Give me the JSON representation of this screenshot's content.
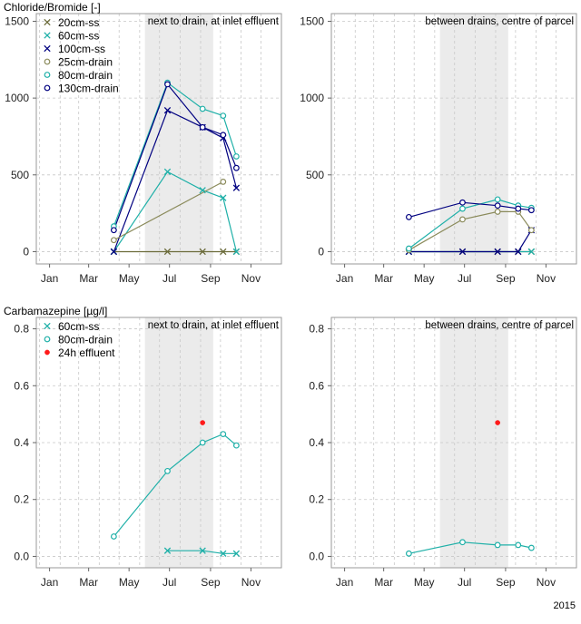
{
  "figure": {
    "year_label": "2015"
  },
  "chart_data": [
    {
      "id": "tl",
      "type": "line",
      "title": "Chloride/Bromide [-]",
      "annotation": "next to drain, at inlet effluent",
      "ylim": [
        -80,
        1550
      ],
      "yticks": [
        0,
        500,
        1000,
        1500
      ],
      "x_tick_labels": [
        "Jan",
        "Mar",
        "May",
        "Jul",
        "Sep",
        "Nov"
      ],
      "shaded_period": [
        "Jun",
        "Sep"
      ],
      "grid": true,
      "legend": "top-left",
      "series": [
        {
          "name": "20cm-ss",
          "marker": "x",
          "color": "#6b6b3a",
          "x": [
            "May",
            "Jul",
            "Sep",
            "Oct",
            "Nov"
          ],
          "y": [
            0,
            0,
            0,
            0,
            0
          ]
        },
        {
          "name": "60cm-ss",
          "marker": "x",
          "color": "#1fb0a8",
          "x": [
            "May",
            "Jul",
            "Sep",
            "Oct",
            "Nov"
          ],
          "y": [
            0,
            520,
            400,
            350,
            0
          ]
        },
        {
          "name": "100cm-ss",
          "marker": "x",
          "color": "#000080",
          "x": [
            "May",
            "Jul",
            "Sep",
            "Oct",
            "Nov"
          ],
          "y": [
            0,
            920,
            810,
            740,
            415
          ]
        },
        {
          "name": "25cm-drain",
          "marker": "o",
          "color": "#8a8a5a",
          "x": [
            "May",
            "Oct"
          ],
          "y": [
            75,
            455
          ]
        },
        {
          "name": "80cm-drain",
          "marker": "o",
          "color": "#1fb0a8",
          "x": [
            "May",
            "Jul",
            "Sep",
            "Oct",
            "Nov"
          ],
          "y": [
            165,
            1100,
            930,
            885,
            620
          ]
        },
        {
          "name": "130cm-drain",
          "marker": "o",
          "color": "#000080",
          "x": [
            "May",
            "Jul",
            "Sep",
            "Oct",
            "Nov"
          ],
          "y": [
            140,
            1090,
            810,
            760,
            545
          ]
        }
      ]
    },
    {
      "id": "tr",
      "type": "line",
      "title": "",
      "annotation": "between drains, centre of parcel",
      "ylim": [
        -80,
        1550
      ],
      "yticks": [
        0,
        500,
        1000,
        1500
      ],
      "x_tick_labels": [
        "Jan",
        "Mar",
        "May",
        "Jul",
        "Sep",
        "Nov"
      ],
      "shaded_period": [
        "Jun",
        "Sep"
      ],
      "grid": true,
      "legend": "",
      "series": [
        {
          "name": "20cm-ss",
          "marker": "x",
          "color": "#6b6b3a",
          "x": [
            "May",
            "Jul",
            "Sep",
            "Oct",
            "Nov"
          ],
          "y": [
            0,
            0,
            0,
            0,
            0
          ]
        },
        {
          "name": "60cm-ss",
          "marker": "x",
          "color": "#1fb0a8",
          "x": [
            "May",
            "Nov"
          ],
          "y": [
            0,
            0
          ]
        },
        {
          "name": "100cm-ss",
          "marker": "x",
          "color": "#000080",
          "x": [
            "May",
            "Jul",
            "Sep",
            "Oct",
            "Nov"
          ],
          "y": [
            0,
            0,
            0,
            0,
            140
          ]
        },
        {
          "name": "25cm-drain",
          "marker": "o",
          "color": "#8a8a5a",
          "x": [
            "May",
            "Jul",
            "Sep",
            "Oct",
            "Nov"
          ],
          "y": [
            10,
            210,
            260,
            260,
            140
          ]
        },
        {
          "name": "80cm-drain",
          "marker": "o",
          "color": "#1fb0a8",
          "x": [
            "May",
            "Jul",
            "Sep",
            "Oct",
            "Nov"
          ],
          "y": [
            20,
            280,
            340,
            300,
            285
          ]
        },
        {
          "name": "130cm-drain",
          "marker": "o",
          "color": "#000080",
          "x": [
            "May",
            "Jul",
            "Sep",
            "Oct",
            "Nov"
          ],
          "y": [
            225,
            320,
            300,
            280,
            270
          ]
        }
      ]
    },
    {
      "id": "bl",
      "type": "line",
      "title": "Carbamazepine [µg/l]",
      "annotation": "next to drain, at inlet effluent",
      "ylim": [
        -0.04,
        0.84
      ],
      "yticks": [
        0.0,
        0.2,
        0.4,
        0.6,
        0.8
      ],
      "ytick_labels": [
        "0.0",
        "0.2",
        "0.4",
        "0.6",
        "0.8"
      ],
      "x_tick_labels": [
        "Jan",
        "Mar",
        "May",
        "Jul",
        "Sep",
        "Nov"
      ],
      "shaded_period": [
        "Jun",
        "Sep"
      ],
      "grid": true,
      "legend": "top-left",
      "series": [
        {
          "name": "60cm-ss",
          "marker": "x",
          "color": "#1fb0a8",
          "x": [
            "Jul",
            "Sep",
            "Oct",
            "Nov"
          ],
          "y": [
            0.02,
            0.02,
            0.01,
            0.01
          ]
        },
        {
          "name": "80cm-drain",
          "marker": "o",
          "color": "#1fb0a8",
          "x": [
            "May",
            "Jul",
            "Sep",
            "Oct",
            "Nov"
          ],
          "y": [
            0.07,
            0.3,
            0.4,
            0.43,
            0.39
          ]
        },
        {
          "name": "24h effluent",
          "marker": "dot",
          "color": "#ff1a1a",
          "x": [
            "Sep"
          ],
          "y": [
            0.47
          ]
        }
      ]
    },
    {
      "id": "br",
      "type": "line",
      "title": "",
      "annotation": "between drains, centre of parcel",
      "ylim": [
        -0.04,
        0.84
      ],
      "yticks": [
        0.0,
        0.2,
        0.4,
        0.6,
        0.8
      ],
      "ytick_labels": [
        "0.0",
        "0.2",
        "0.4",
        "0.6",
        "0.8"
      ],
      "x_tick_labels": [
        "Jan",
        "Mar",
        "May",
        "Jul",
        "Sep",
        "Nov"
      ],
      "shaded_period": [
        "Jun",
        "Sep"
      ],
      "grid": true,
      "legend": "",
      "series": [
        {
          "name": "80cm-drain",
          "marker": "o",
          "color": "#1fb0a8",
          "x": [
            "May",
            "Jul",
            "Sep",
            "Oct",
            "Nov"
          ],
          "y": [
            0.01,
            0.05,
            0.04,
            0.04,
            0.03
          ]
        },
        {
          "name": "24h effluent",
          "marker": "dot",
          "color": "#ff1a1a",
          "x": [
            "Sep"
          ],
          "y": [
            0.47
          ]
        }
      ]
    }
  ]
}
